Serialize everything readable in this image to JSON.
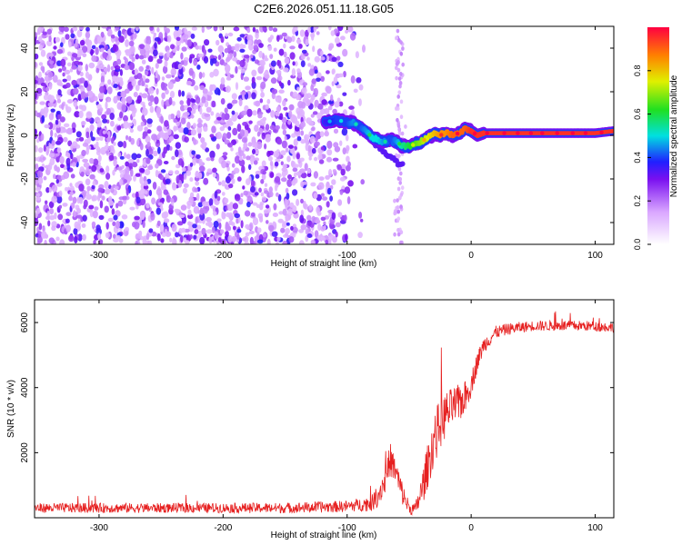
{
  "title": "C2E6.2026.051.11.18.G05",
  "chart_data": [
    {
      "type": "heatmap",
      "title": "C2E6.2026.051.11.18.G05",
      "xlabel": "Height of straight line (km)",
      "ylabel": "Frequency (Hz)",
      "xlim": [
        -352,
        115
      ],
      "ylim": [
        -50,
        50
      ],
      "x_ticks": [
        -300,
        -200,
        -100,
        0,
        100
      ],
      "y_ticks": [
        -40,
        -20,
        0,
        20,
        40
      ],
      "colorbar": {
        "label": "Normalized spectral amplitude",
        "range": [
          0,
          1
        ],
        "ticks": [
          0,
          0.2,
          0.4,
          0.6,
          0.8
        ],
        "tick_labels": [
          "0.0",
          "0.2",
          "0.4",
          "0.6",
          "0.8"
        ]
      },
      "noise_region_x": [
        -352,
        -85
      ],
      "noise_streak_x": -58,
      "signal_track": {
        "height_km": [
          -118,
          -108,
          -100,
          -95,
          -90,
          -85,
          -80,
          -75,
          -70,
          -65,
          -60,
          -55,
          -50,
          -45,
          -40,
          -35,
          -30,
          -25,
          -20,
          -15,
          -10,
          -5,
          0,
          5,
          10,
          20,
          40,
          60,
          80,
          100,
          115
        ],
        "frequency_hz": [
          6,
          7,
          6,
          6,
          4,
          2,
          -1,
          -2,
          -3,
          -2,
          -3,
          -5,
          -5,
          -4,
          -3,
          -1,
          1,
          0,
          1,
          0,
          1,
          3,
          2,
          0,
          1,
          1,
          1,
          1,
          1,
          1,
          2
        ],
        "amplitude": [
          0.35,
          0.4,
          0.4,
          0.45,
          0.4,
          0.45,
          0.5,
          0.5,
          0.45,
          0.4,
          0.45,
          0.55,
          0.6,
          0.65,
          0.7,
          0.75,
          0.8,
          0.85,
          0.85,
          0.9,
          0.9,
          0.9,
          0.95,
          0.95,
          0.95,
          0.95,
          0.95,
          0.95,
          0.95,
          0.95,
          0.95
        ]
      },
      "secondary_branch": {
        "height_km": [
          -95,
          -85,
          -75,
          -65,
          -55
        ],
        "frequency_hz": [
          5,
          0,
          -5,
          -10,
          -14
        ]
      }
    },
    {
      "type": "line",
      "xlabel": "Height of straight line (km)",
      "ylabel": "SNR (10 * v/v)",
      "xlim": [
        -352,
        115
      ],
      "ylim": [
        0,
        6700
      ],
      "x_ticks": [
        -300,
        -200,
        -100,
        0,
        100
      ],
      "y_ticks": [
        2000,
        4000,
        6000
      ],
      "series": [
        {
          "name": "SNR",
          "color": "#e62020",
          "x": [
            -352,
            -300,
            -250,
            -200,
            -150,
            -100,
            -90,
            -80,
            -75,
            -70,
            -65,
            -60,
            -55,
            -50,
            -45,
            -40,
            -35,
            -30,
            -25,
            -20,
            -15,
            -10,
            -5,
            0,
            5,
            10,
            20,
            30,
            50,
            70,
            90,
            115
          ],
          "y": [
            300,
            300,
            300,
            300,
            300,
            350,
            400,
            450,
            700,
            1100,
            1800,
            1300,
            700,
            300,
            250,
            800,
            1600,
            2400,
            2900,
            3200,
            3400,
            3500,
            3700,
            4100,
            4800,
            5300,
            5700,
            5800,
            5900,
            5900,
            5900,
            5850
          ],
          "noise_amplitude": [
            150,
            150,
            150,
            150,
            160,
            180,
            200,
            250,
            350,
            450,
            500,
            450,
            350,
            200,
            200,
            500,
            700,
            800,
            800,
            700,
            600,
            600,
            500,
            400,
            300,
            250,
            200,
            180,
            160,
            160,
            160,
            150
          ]
        }
      ]
    }
  ]
}
